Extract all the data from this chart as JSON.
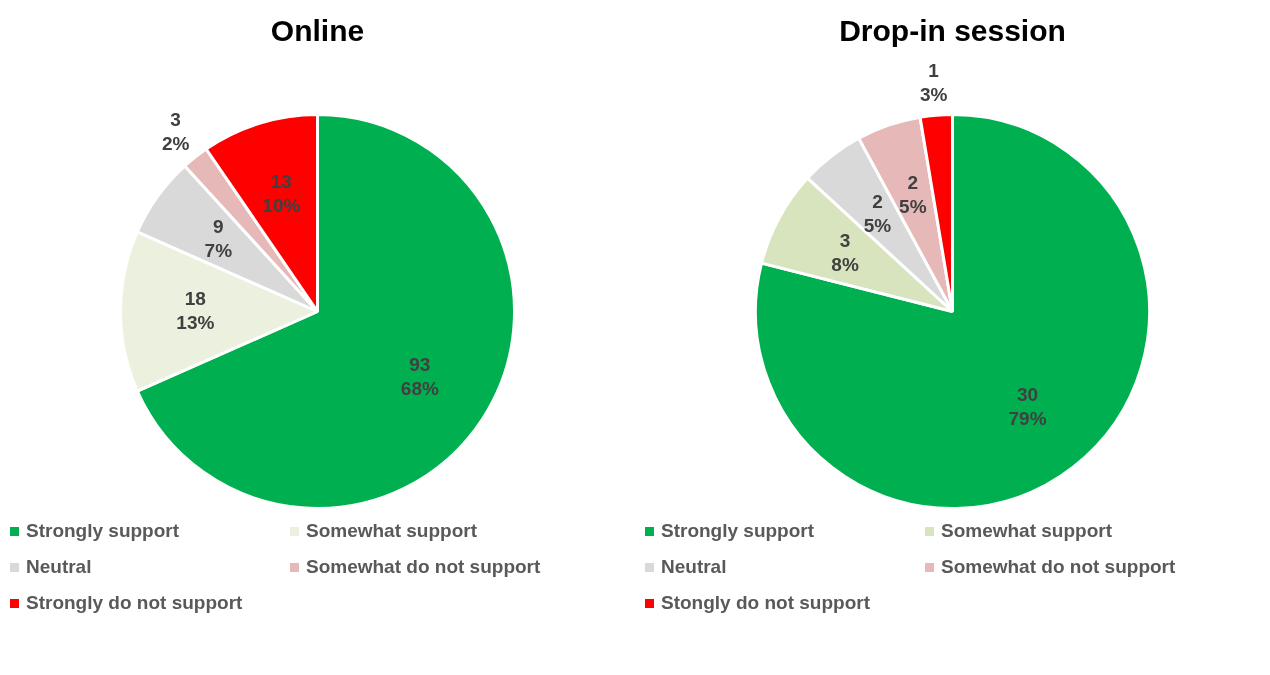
{
  "chart_data": [
    {
      "type": "pie",
      "title": "Online",
      "categories": [
        "Strongly support",
        "Somewhat support",
        "Neutral",
        "Somewhat do not support",
        "Strongly do not support"
      ],
      "values": [
        93,
        18,
        9,
        3,
        13
      ],
      "colors": [
        "#00b050",
        "#ebf1de",
        "#d9d9d9",
        "#e6b9b8",
        "#ff0000"
      ],
      "value_labels": [
        "93\n68%",
        "18\n13%",
        "9\n7%",
        "3\n2%",
        "13\n10%"
      ],
      "legend": "bottom"
    },
    {
      "type": "pie",
      "title": "Drop-in session",
      "categories": [
        "Strongly support",
        "Somewhat support",
        "Neutral",
        "Somewhat do not support",
        "Stongly do not support"
      ],
      "values": [
        30,
        3,
        2,
        2,
        1
      ],
      "colors": [
        "#00b050",
        "#d7e4bd",
        "#d9d9d9",
        "#e6b9b8",
        "#ff0000"
      ],
      "value_labels": [
        "30\n79%",
        "3\n8%",
        "2\n5%",
        "2\n5%",
        "1\n3%"
      ],
      "legend": "bottom"
    }
  ]
}
